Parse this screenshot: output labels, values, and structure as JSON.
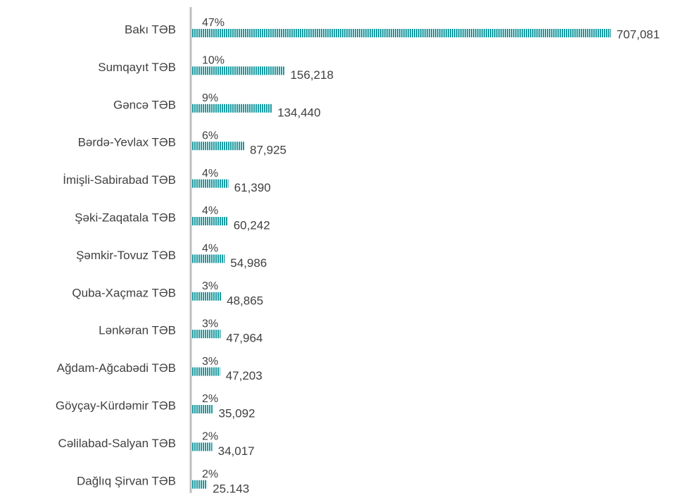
{
  "chart_data": {
    "type": "bar",
    "orientation": "horizontal",
    "categories": [
      "Bakı TƏB",
      "Sumqayıt TƏB",
      "Gəncə TƏB",
      "Bərdə-Yevlax TƏB",
      "İmişli-Sabirabad TƏB",
      "Şəki-Zaqatala TƏB",
      "Şəmkir-Tovuz TƏB",
      "Quba-Xaçmaz TƏB",
      "Lənkəran TƏB",
      "Ağdam-Ağcabədi TƏB",
      "Göyçay-Kürdəmir TƏB",
      "Cəlilabad-Salyan TƏB",
      "Dağlıq Şirvan TƏB"
    ],
    "values": [
      707081,
      156218,
      134440,
      87925,
      61390,
      60242,
      54986,
      48865,
      47964,
      47203,
      35092,
      34017,
      25143
    ],
    "value_labels": [
      "707,081",
      "156,218",
      "134,440",
      "87,925",
      "61,390",
      "60,242",
      "54,986",
      "48,865",
      "47,964",
      "47,203",
      "35,092",
      "34,017",
      "25,143"
    ],
    "percent_labels": [
      "47%",
      "10%",
      "9%",
      "6%",
      "4%",
      "4%",
      "4%",
      "3%",
      "3%",
      "3%",
      "2%",
      "2%",
      "2%"
    ],
    "color": "#1a9aa0"
  }
}
